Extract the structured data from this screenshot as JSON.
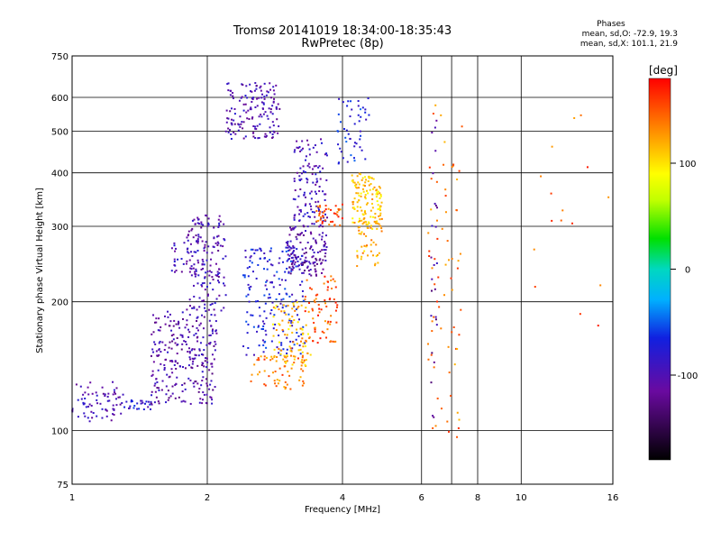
{
  "chart_data": {
    "type": "scatter",
    "title": "Tromsø 20141019 18:34:00-18:35:43",
    "subtitle": "RwPretec (8p)",
    "xlabel": "Frequency [MHz]",
    "ylabel": "Stationary phase Virtual Height [km]",
    "xscale": "log",
    "yscale": "log",
    "xlim": [
      1,
      16
    ],
    "ylim": [
      75,
      750
    ],
    "xticks": [
      1,
      2,
      4,
      6,
      8,
      10,
      16
    ],
    "xtick_labels": [
      "1",
      "2",
      "4",
      "6",
      "8",
      "10",
      "16"
    ],
    "xgrid": [
      2,
      4,
      6,
      7,
      8,
      10
    ],
    "yticks": [
      75,
      100,
      200,
      300,
      400,
      500,
      600,
      750
    ],
    "ytick_labels": [
      "75",
      "100",
      "200",
      "300",
      "400",
      "500",
      "600",
      "750"
    ],
    "ygrid": [
      100,
      200,
      300,
      400,
      500,
      600
    ],
    "grid": true,
    "stats": {
      "heading": "Phases",
      "line_o": "mean, sd,O: -72.9, 19.3",
      "line_x": "mean, sd,X: 101.1, 21.9"
    },
    "colorbar": {
      "label": "[deg]",
      "range": [
        -180,
        180
      ],
      "tick_values": [
        100,
        0,
        -100
      ],
      "tick_labels": [
        "100",
        "0",
        "-100"
      ],
      "colormap": "rainbow"
    },
    "series": [
      {
        "name": "cluster",
        "freq": [
          1.0,
          1.3
        ],
        "height": [
          105,
          130
        ],
        "phase": -100,
        "count": 70
      },
      {
        "name": "cluster",
        "freq": [
          1.3,
          1.5
        ],
        "height": [
          112,
          118
        ],
        "phase": -80,
        "count": 25
      },
      {
        "name": "cluster",
        "freq": [
          1.5,
          2.1
        ],
        "height": [
          115,
          190
        ],
        "phase": -105,
        "count": 260
      },
      {
        "name": "cluster",
        "freq": [
          1.8,
          2.2
        ],
        "height": [
          190,
          320
        ],
        "phase": -100,
        "count": 150
      },
      {
        "name": "cluster",
        "freq": [
          1.65,
          2.0
        ],
        "height": [
          230,
          280
        ],
        "phase": -95,
        "count": 40
      },
      {
        "name": "cluster",
        "freq": [
          2.2,
          2.9
        ],
        "height": [
          480,
          650
        ],
        "phase": -100,
        "count": 150
      },
      {
        "name": "cluster",
        "freq": [
          2.4,
          3.3
        ],
        "height": [
          150,
          270
        ],
        "phase": -75,
        "count": 200
      },
      {
        "name": "cluster",
        "freq": [
          2.5,
          3.3
        ],
        "height": [
          125,
          150
        ],
        "phase": 140,
        "count": 60
      },
      {
        "name": "cluster",
        "freq": [
          2.8,
          3.4
        ],
        "height": [
          140,
          200
        ],
        "phase": 115,
        "count": 90
      },
      {
        "name": "cluster",
        "freq": [
          3.0,
          3.7
        ],
        "height": [
          230,
          300
        ],
        "phase": -110,
        "count": 130
      },
      {
        "name": "cluster",
        "freq": [
          3.1,
          3.7
        ],
        "height": [
          300,
          480
        ],
        "phase": -95,
        "count": 120
      },
      {
        "name": "cluster",
        "freq": [
          3.3,
          3.9
        ],
        "height": [
          160,
          230
        ],
        "phase": 150,
        "count": 70
      },
      {
        "name": "cluster",
        "freq": [
          3.5,
          4.0
        ],
        "height": [
          300,
          340
        ],
        "phase": 150,
        "count": 40
      },
      {
        "name": "cluster",
        "freq": [
          3.9,
          4.6
        ],
        "height": [
          420,
          600
        ],
        "phase": -70,
        "count": 50
      },
      {
        "name": "cluster",
        "freq": [
          4.2,
          4.9
        ],
        "height": [
          300,
          400
        ],
        "phase": 110,
        "count": 130
      },
      {
        "name": "cluster",
        "freq": [
          4.3,
          4.9
        ],
        "height": [
          240,
          300
        ],
        "phase": 120,
        "count": 40
      },
      {
        "name": "cluster",
        "freq": [
          6.2,
          7.4
        ],
        "height": [
          95,
          620
        ],
        "phase": 140,
        "count": 70
      },
      {
        "name": "cluster",
        "freq": [
          6.3,
          6.5
        ],
        "height": [
          100,
          600
        ],
        "phase": -110,
        "count": 25
      },
      {
        "name": "scattered",
        "freq": [
          10.5,
          16.0
        ],
        "height": [
          170,
          620
        ],
        "phase": 150,
        "count": 16
      }
    ]
  }
}
